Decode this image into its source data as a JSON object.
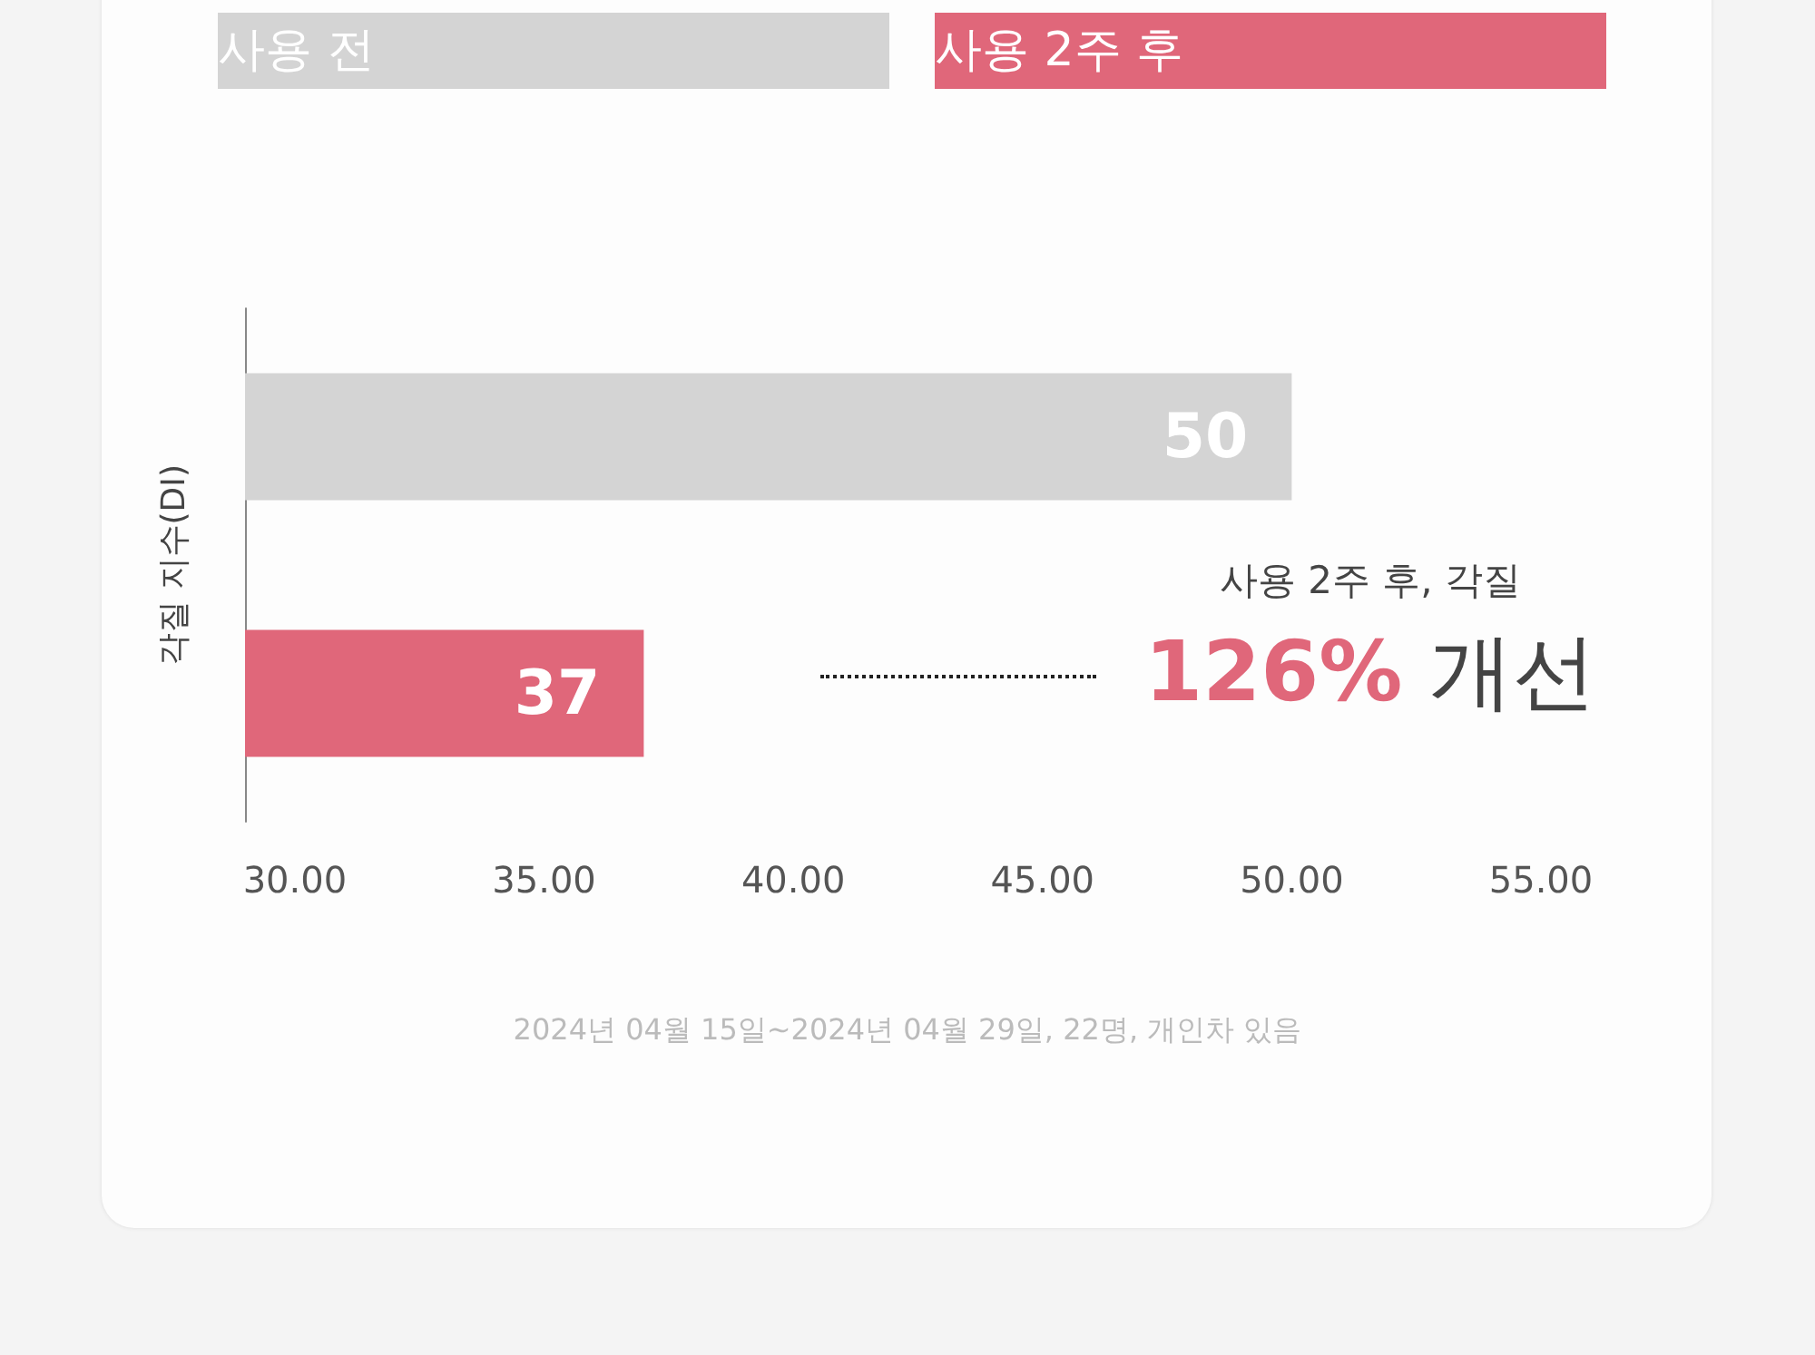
{
  "chart_data": {
    "type": "bar",
    "orientation": "horizontal",
    "stacked": true,
    "ylabel": "각질 지수(DI)",
    "categories": [
      null,
      null
    ],
    "series": [
      {
        "name": "사용 전",
        "color": "#d4d4d4",
        "values": [
          50,
          null
        ]
      },
      {
        "name": "사용 2주 후",
        "color": "#e0677a",
        "values": [
          null,
          37
        ]
      }
    ],
    "xlim": [
      29,
      55
    ],
    "xticks": [
      {
        "value": 30,
        "label": "30.00"
      },
      {
        "value": 35,
        "label": "35.00"
      },
      {
        "value": 40,
        "label": "40.00"
      },
      {
        "value": 45,
        "label": "45.00"
      },
      {
        "value": 50,
        "label": "50.00"
      },
      {
        "value": 55,
        "label": "55.00"
      }
    ],
    "data_labels": true,
    "legend": "top",
    "grid": false,
    "annotations": [
      "사용 2주 후, 각질",
      "126% 개선",
      "2024년 04월 15일~2024년 04월 29일, 22명, 개인차 있음"
    ]
  }
}
